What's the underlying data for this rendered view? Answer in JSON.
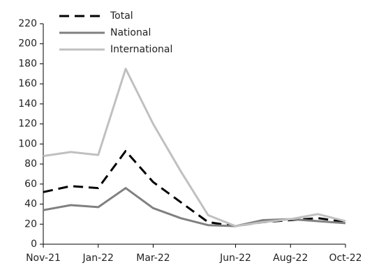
{
  "chart_data": {
    "type": "line",
    "categories": [
      "Nov-21",
      null,
      "Jan-22",
      null,
      "Mar-22",
      null,
      null,
      "Jun-22",
      null,
      "Aug-22",
      null,
      "Oct-22"
    ],
    "series": [
      {
        "name": "Total",
        "color": "#000000",
        "dash": true,
        "values": [
          52,
          58,
          56,
          93,
          62,
          42,
          22,
          18,
          22,
          24,
          26,
          22
        ]
      },
      {
        "name": "National",
        "color": "#808080",
        "dash": false,
        "values": [
          34,
          39,
          37,
          56,
          36,
          26,
          19,
          18,
          24,
          25,
          23,
          21
        ]
      },
      {
        "name": "International",
        "color": "#c0c0c0",
        "dash": false,
        "values": [
          88,
          92,
          89,
          175,
          120,
          73,
          29,
          18,
          22,
          25,
          30,
          23
        ]
      }
    ],
    "ylim": [
      0,
      220
    ],
    "yticks": [
      0,
      20,
      40,
      60,
      80,
      100,
      120,
      140,
      160,
      180,
      200,
      220
    ],
    "legend": "upper left"
  }
}
